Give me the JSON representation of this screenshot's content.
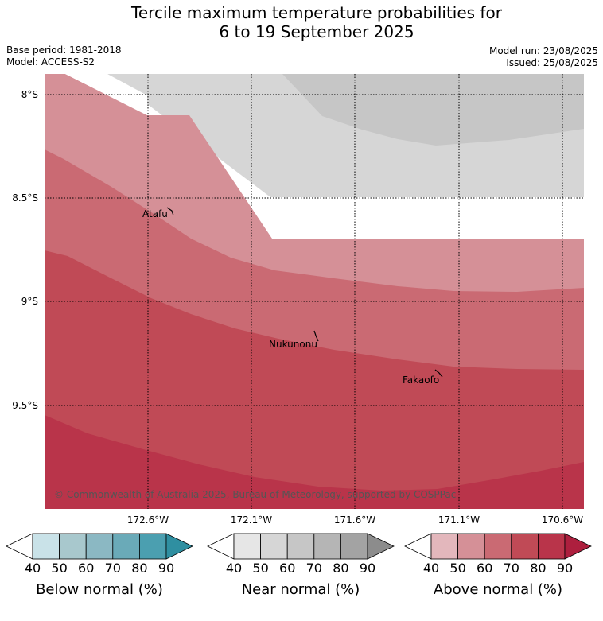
{
  "title": {
    "line1": "Tercile maximum temperature probabilities for",
    "line2": "6 to 19 September 2025"
  },
  "meta": {
    "base_period": "Base period: 1981-2018",
    "model": "Model: ACCESS-S2",
    "model_run": "Model run: 23/08/2025",
    "issued": "Issued: 25/08/2025"
  },
  "map": {
    "lat_labels": [
      "8°S",
      "8.5°S",
      "9°S",
      "9.5°S"
    ],
    "lon_labels": [
      "172.6°W",
      "172.1°W",
      "171.6°W",
      "171.1°W",
      "170.6°W"
    ],
    "places": [
      "Atafu",
      "Nukunonu",
      "Fakaofo"
    ],
    "copyright": "© Commonwealth of Australia 2025, Bureau of Meteorology, supported by COSPPac",
    "colors": {
      "no_dominant": "#ffffff",
      "near_50": "#d6d6d6",
      "near_60": "#c6c6c6",
      "above_50": "#d59097",
      "above_60": "#ca6a73",
      "above_70": "#c04a56",
      "above_80": "#b9344a"
    }
  },
  "colorbars": [
    {
      "title": "Below normal (%)",
      "ticks": [
        "40",
        "50",
        "60",
        "70",
        "80",
        "90"
      ],
      "colors": [
        "#ffffff",
        "#c9e2e8",
        "#a8c8cd",
        "#8bb8c3",
        "#6aaab8",
        "#4b9fb0",
        "#2f8fa1"
      ]
    },
    {
      "title": "Near normal (%)",
      "ticks": [
        "40",
        "50",
        "60",
        "70",
        "80",
        "90"
      ],
      "colors": [
        "#ffffff",
        "#e6e6e6",
        "#d6d6d6",
        "#c6c6c6",
        "#b5b5b5",
        "#a3a3a3",
        "#8c8c8c"
      ]
    },
    {
      "title": "Above normal (%)",
      "ticks": [
        "40",
        "50",
        "60",
        "70",
        "80",
        "90"
      ],
      "colors": [
        "#ffffff",
        "#e3b7bc",
        "#d59097",
        "#ca6a73",
        "#c04a56",
        "#b9344a",
        "#ad1f3e"
      ]
    }
  ]
}
